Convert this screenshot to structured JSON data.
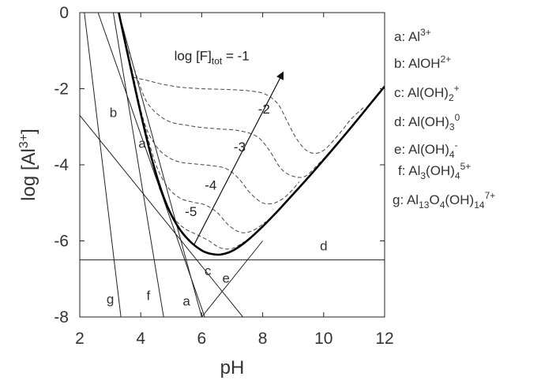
{
  "chart_data": {
    "type": "line",
    "xlabel": "pH",
    "ylabel_base": "log [Al",
    "ylabel_sup": "3+",
    "ylabel_end": "]",
    "xlim": [
      2,
      12
    ],
    "ylim": [
      -8,
      0
    ],
    "xticks": [
      2,
      4,
      6,
      8,
      10,
      12
    ],
    "yticks": [
      0,
      -2,
      -4,
      -6,
      -8
    ],
    "grid": false,
    "species_lines": [
      {
        "label": "a",
        "points": [
          [
            3.28,
            0
          ],
          [
            6.0,
            -8.0
          ]
        ],
        "label_at": [
          4.05,
          -3.55
        ],
        "label_at2": [
          5.5,
          -7.7
        ]
      },
      {
        "label": "b",
        "points": [
          [
            2.6,
            0
          ],
          [
            6.1,
            -8.0
          ]
        ],
        "label_at": [
          3.1,
          -2.75
        ]
      },
      {
        "label": "c",
        "points": [
          [
            2.0,
            -2.7
          ],
          [
            7.35,
            -8.0
          ]
        ],
        "label_at": [
          6.2,
          -6.9
        ]
      },
      {
        "label": "d",
        "points": [
          [
            2.0,
            -6.5
          ],
          [
            12.0,
            -6.5
          ]
        ],
        "label_at": [
          10.0,
          -6.25
        ]
      },
      {
        "label": "e",
        "points": [
          [
            6.0,
            -8.0
          ],
          [
            8.0,
            -6.0
          ]
        ],
        "label_at": [
          6.8,
          -7.1
        ]
      },
      {
        "label": "f",
        "points": [
          [
            3.1,
            0
          ],
          [
            4.75,
            -8.0
          ]
        ],
        "label_at": [
          4.25,
          -7.55
        ]
      },
      {
        "label": "g",
        "points": [
          [
            2.15,
            0
          ],
          [
            3.35,
            -8.0
          ]
        ],
        "label_at": [
          3.0,
          -7.65
        ]
      }
    ],
    "total_solubility": {
      "x": [
        3.28,
        3.6,
        4.0,
        4.4,
        4.8,
        5.2,
        5.6,
        6.0,
        6.3,
        6.6,
        6.9,
        7.2,
        7.6,
        8.0,
        8.5,
        9.0,
        9.5,
        10.0,
        10.5,
        11.0,
        11.5,
        12.0
      ],
      "y": [
        0,
        -1.2,
        -2.65,
        -3.95,
        -4.95,
        -5.6,
        -6.0,
        -6.25,
        -6.34,
        -6.36,
        -6.3,
        -6.17,
        -5.92,
        -5.62,
        -5.21,
        -4.77,
        -4.33,
        -3.87,
        -3.4,
        -2.92,
        -2.43,
        -1.94
      ]
    },
    "fluoride_curves": [
      {
        "name": "-1",
        "x": [
          3.75,
          4.2,
          4.7,
          5.3,
          6.0,
          6.8,
          7.6,
          8.1,
          8.5,
          8.8,
          9.1,
          9.4,
          9.7,
          10.0,
          10.3,
          10.6,
          10.9,
          11.3
        ],
        "y": [
          -1.7,
          -1.78,
          -1.88,
          -1.96,
          -2.0,
          -2.02,
          -2.06,
          -2.15,
          -2.4,
          -2.85,
          -3.3,
          -3.6,
          -3.7,
          -3.62,
          -3.38,
          -3.1,
          -2.8,
          -2.5
        ]
      },
      {
        "name": "-2",
        "x": [
          3.6,
          3.9,
          4.2,
          4.6,
          5.0,
          5.5,
          6.0,
          6.6,
          7.2,
          7.8,
          8.2,
          8.6,
          9.0,
          9.4,
          9.8,
          10.4
        ],
        "y": [
          -1.0,
          -1.75,
          -2.35,
          -2.7,
          -2.88,
          -2.96,
          -3.02,
          -3.06,
          -3.1,
          -3.25,
          -3.6,
          -4.1,
          -4.3,
          -4.3,
          -4.0,
          -3.52
        ]
      },
      {
        "name": "-3",
        "x": [
          3.7,
          4.1,
          4.5,
          4.9,
          5.3,
          5.8,
          6.3,
          6.8,
          7.2,
          7.6,
          8.0,
          8.4,
          8.8,
          9.2
        ],
        "y": [
          -1.45,
          -2.85,
          -3.5,
          -3.8,
          -3.93,
          -3.98,
          -4.02,
          -4.1,
          -4.35,
          -4.75,
          -5.0,
          -5.0,
          -4.8,
          -4.45
        ]
      },
      {
        "name": "-4",
        "x": [
          4.1,
          4.5,
          4.9,
          5.3,
          5.7,
          6.1,
          6.5,
          6.9,
          7.3,
          7.7,
          8.1
        ],
        "y": [
          -2.9,
          -4.0,
          -4.6,
          -4.88,
          -4.98,
          -5.05,
          -5.25,
          -5.6,
          -5.78,
          -5.72,
          -5.5
        ]
      },
      {
        "name": "-5",
        "x": [
          4.6,
          5.0,
          5.4,
          5.8,
          6.2,
          6.6,
          7.0,
          7.4
        ],
        "y": [
          -4.6,
          -5.3,
          -5.65,
          -5.82,
          -5.98,
          -6.18,
          -6.2,
          -6.02
        ]
      }
    ],
    "curve_labels": [
      {
        "text": "log [F]",
        "sub": "tot",
        "end": " = -1",
        "at": [
          5.1,
          -1.25
        ]
      },
      {
        "text": "-2",
        "at": [
          7.85,
          -2.65
        ]
      },
      {
        "text": "-3",
        "at": [
          7.05,
          -3.65
        ]
      },
      {
        "text": "-4",
        "at": [
          6.1,
          -4.65
        ]
      },
      {
        "text": "-5",
        "at": [
          5.45,
          -5.35
        ]
      }
    ],
    "arrow": {
      "from": [
        5.75,
        -6.1
      ],
      "to": [
        8.65,
        -1.6
      ]
    },
    "legend": [
      {
        "key": "a:",
        "parts": [
          {
            "t": "Al"
          },
          {
            "t": "3+",
            "s": "sup"
          }
        ]
      },
      {
        "key": "b:",
        "parts": [
          {
            "t": "AlOH"
          },
          {
            "t": "2+",
            "s": "sup"
          }
        ]
      },
      {
        "key": "c:",
        "parts": [
          {
            "t": "Al(OH)"
          },
          {
            "t": "2",
            "s": "sub"
          },
          {
            "t": "+",
            "s": "sup"
          }
        ]
      },
      {
        "key": "d:",
        "parts": [
          {
            "t": "Al(OH)"
          },
          {
            "t": "3",
            "s": "sub"
          },
          {
            "t": "0",
            "s": "sup"
          }
        ]
      },
      {
        "key": "e:",
        "parts": [
          {
            "t": "Al(OH)"
          },
          {
            "t": "4",
            "s": "sub"
          },
          {
            "t": "-",
            "s": "sup"
          }
        ]
      },
      {
        "key": "f:",
        "parts": [
          {
            "t": "Al"
          },
          {
            "t": "3",
            "s": "sub"
          },
          {
            "t": "(OH)"
          },
          {
            "t": "4",
            "s": "sub"
          },
          {
            "t": "5+",
            "s": "sup"
          }
        ]
      },
      {
        "key": "g:",
        "parts": [
          {
            "t": "Al"
          },
          {
            "t": "13",
            "s": "sub"
          },
          {
            "t": "O"
          },
          {
            "t": "4",
            "s": "sub"
          },
          {
            "t": "(OH)"
          },
          {
            "t": "14",
            "s": "sub"
          },
          {
            "t": "7+",
            "s": "sup"
          }
        ]
      }
    ]
  }
}
